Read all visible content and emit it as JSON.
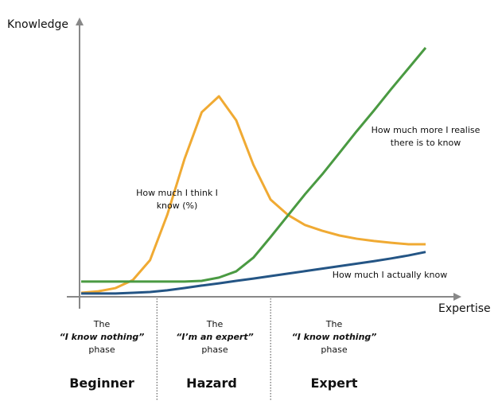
{
  "chart_data": {
    "type": "line",
    "xlabel": "Expertise",
    "ylabel": "Knowledge",
    "grid": false,
    "x": [
      0,
      1,
      2,
      3,
      4,
      5,
      6,
      7,
      8,
      9,
      10,
      11,
      12,
      13,
      14,
      15,
      16,
      17,
      18,
      19,
      20
    ],
    "ylim": [
      0,
      100
    ],
    "series": [
      {
        "name": "How much I think I know (%)",
        "color": "#f0aa33",
        "values": [
          1.6,
          2.2,
          3.5,
          6.7,
          14.7,
          32.9,
          55.3,
          74.1,
          80.5,
          70.9,
          53,
          39,
          32.9,
          28.8,
          26.5,
          24.6,
          23.3,
          22.4,
          21.7,
          21.1,
          21.1
        ]
      },
      {
        "name": "How much more I realise there is to know",
        "color": "#4a9a42",
        "values": [
          6.1,
          6.1,
          6.1,
          6.1,
          6.1,
          6.1,
          6.1,
          6.4,
          7.7,
          10.2,
          15.7,
          24,
          32.6,
          41.2,
          49.2,
          57.8,
          66.5,
          74.8,
          83.4,
          91.7,
          100
        ]
      },
      {
        "name": "How much I actually know",
        "color": "#245585",
        "values": [
          1.3,
          1.3,
          1.3,
          1.6,
          1.9,
          2.6,
          3.5,
          4.5,
          5.4,
          6.4,
          7.3,
          8.3,
          9.3,
          10.3,
          11.3,
          12.3,
          13.3,
          14.3,
          15.4,
          16.6,
          18
        ]
      }
    ],
    "phase_boundaries": [
      4.4,
      11
    ]
  },
  "phases": [
    {
      "line1": "The",
      "quote": "“I know nothing”",
      "line3": "phase",
      "stage": "Beginner"
    },
    {
      "line1": "The",
      "quote": "“I’m an expert”",
      "line3": "phase",
      "stage": "Hazard"
    },
    {
      "line1": "The",
      "quote": "“I know nothing”",
      "line3": "phase",
      "stage": "Expert"
    }
  ],
  "labels": {
    "think": "How much I think I know (%)",
    "realise_1": "How much more I realise",
    "realise_2": "there is to know",
    "actual": "How much I actually know"
  }
}
